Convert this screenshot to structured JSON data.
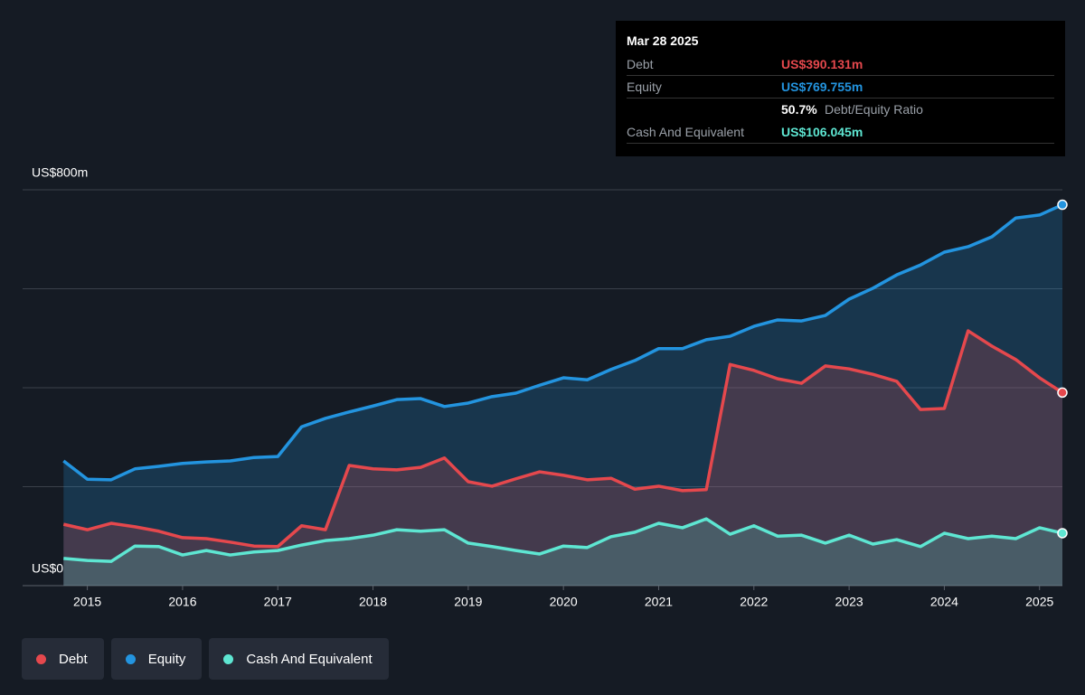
{
  "chart_data": {
    "type": "line",
    "x": [
      2014.75,
      2015.0,
      2015.25,
      2015.5,
      2015.75,
      2016.0,
      2016.25,
      2016.5,
      2016.75,
      2017.0,
      2017.25,
      2017.5,
      2017.75,
      2018.0,
      2018.25,
      2018.5,
      2018.75,
      2019.0,
      2019.25,
      2019.5,
      2019.75,
      2020.0,
      2020.25,
      2020.5,
      2020.75,
      2021.0,
      2021.25,
      2021.5,
      2021.75,
      2022.0,
      2022.25,
      2022.5,
      2022.75,
      2023.0,
      2023.25,
      2023.5,
      2023.75,
      2024.0,
      2024.25,
      2024.5,
      2024.75,
      2025.0,
      2025.24
    ],
    "series": [
      {
        "name": "Debt",
        "color": "#e5484d",
        "fill": "rgba(229,72,77,0.22)",
        "values": [
          124,
          113,
          126,
          119,
          110,
          97,
          95,
          88,
          80,
          79,
          121,
          113,
          243,
          236,
          234,
          239,
          258,
          210,
          201,
          216,
          230,
          223,
          214,
          217,
          195,
          201,
          192,
          194,
          447,
          435,
          418,
          409,
          444,
          438,
          427,
          413,
          356,
          358,
          515,
          484,
          457,
          420,
          390.131
        ]
      },
      {
        "name": "Equity",
        "color": "#2394df",
        "fill": "rgba(35,148,223,0.22)",
        "values": [
          252,
          215,
          214,
          236,
          241,
          247,
          250,
          252,
          259,
          261,
          321,
          338,
          351,
          363,
          376,
          378,
          362,
          369,
          382,
          389,
          405,
          420,
          416,
          437,
          455,
          479,
          479,
          497,
          504,
          524,
          537,
          535,
          546,
          579,
          601,
          628,
          648,
          674,
          685,
          705,
          743,
          749,
          769.755
        ]
      },
      {
        "name": "Cash And Equivalent",
        "color": "#5ee6d2",
        "fill": "rgba(94,230,210,0.2)",
        "values": [
          55,
          51,
          49,
          80,
          79,
          62,
          71,
          62,
          68,
          71,
          82,
          91,
          95,
          102,
          113,
          110,
          113,
          86,
          79,
          71,
          64,
          80,
          77,
          99,
          108,
          126,
          117,
          135,
          104,
          121,
          100,
          102,
          86,
          102,
          84,
          93,
          79,
          106,
          95,
          100,
          95,
          117,
          106.045
        ]
      }
    ],
    "fill_order": [
      1,
      0,
      2
    ],
    "xlim": [
      2014.32,
      2025.24
    ],
    "xticks": [
      2015,
      2016,
      2017,
      2018,
      2019,
      2020,
      2021,
      2022,
      2023,
      2024,
      2025
    ],
    "ylim": [
      0,
      800
    ],
    "yticks": [
      {
        "value": 0,
        "label": "US$0"
      },
      {
        "value": 800,
        "label": "US$800m"
      }
    ],
    "ygrid": [
      0,
      200,
      400,
      600,
      800
    ],
    "legend": "bottom-left",
    "tooltip": {
      "date": "Mar 28 2025",
      "rows": [
        {
          "label": "Debt",
          "value": "US$390.131m",
          "color": "#e5484d"
        },
        {
          "label": "Equity",
          "value": "US$769.755m",
          "color": "#2394df"
        },
        {
          "value": "50.7%",
          "label": "Debt/Equity Ratio",
          "ratio": true
        },
        {
          "label": "Cash And Equivalent",
          "value": "US$106.045m",
          "color": "#5ee6d2"
        }
      ]
    }
  }
}
